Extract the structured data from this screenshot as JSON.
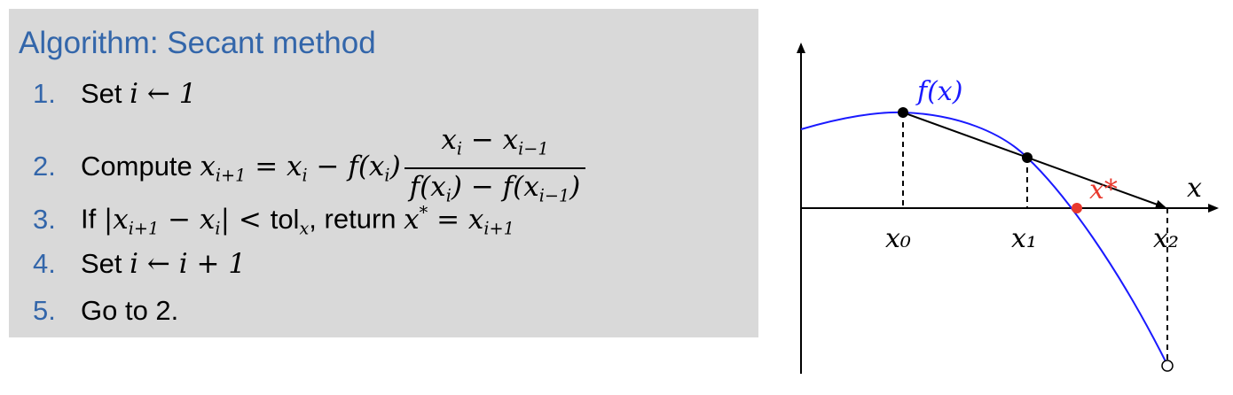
{
  "algorithm": {
    "title": "Algorithm: Secant method",
    "steps": [
      {
        "num": "1.",
        "text": "Set "
      },
      {
        "num": "2.",
        "text": "Compute "
      },
      {
        "num": "3.",
        "text": "If "
      },
      {
        "num": "4.",
        "text": "Set "
      },
      {
        "num": "5.",
        "text": "Go to 2."
      }
    ],
    "step1_math": "i ← 1",
    "step3_tol": "tol",
    "step3_return": ", return ",
    "step4_math": "i ← i + 1"
  },
  "plot": {
    "function_label": "f(x)",
    "axis_label": "x",
    "root_label": "x*",
    "points": [
      {
        "label": "x₀"
      },
      {
        "label": "x₁"
      },
      {
        "label": "x₂"
      }
    ],
    "colors": {
      "curve": "#1a1aff",
      "root": "#e8392e",
      "axis": "#000000"
    }
  }
}
